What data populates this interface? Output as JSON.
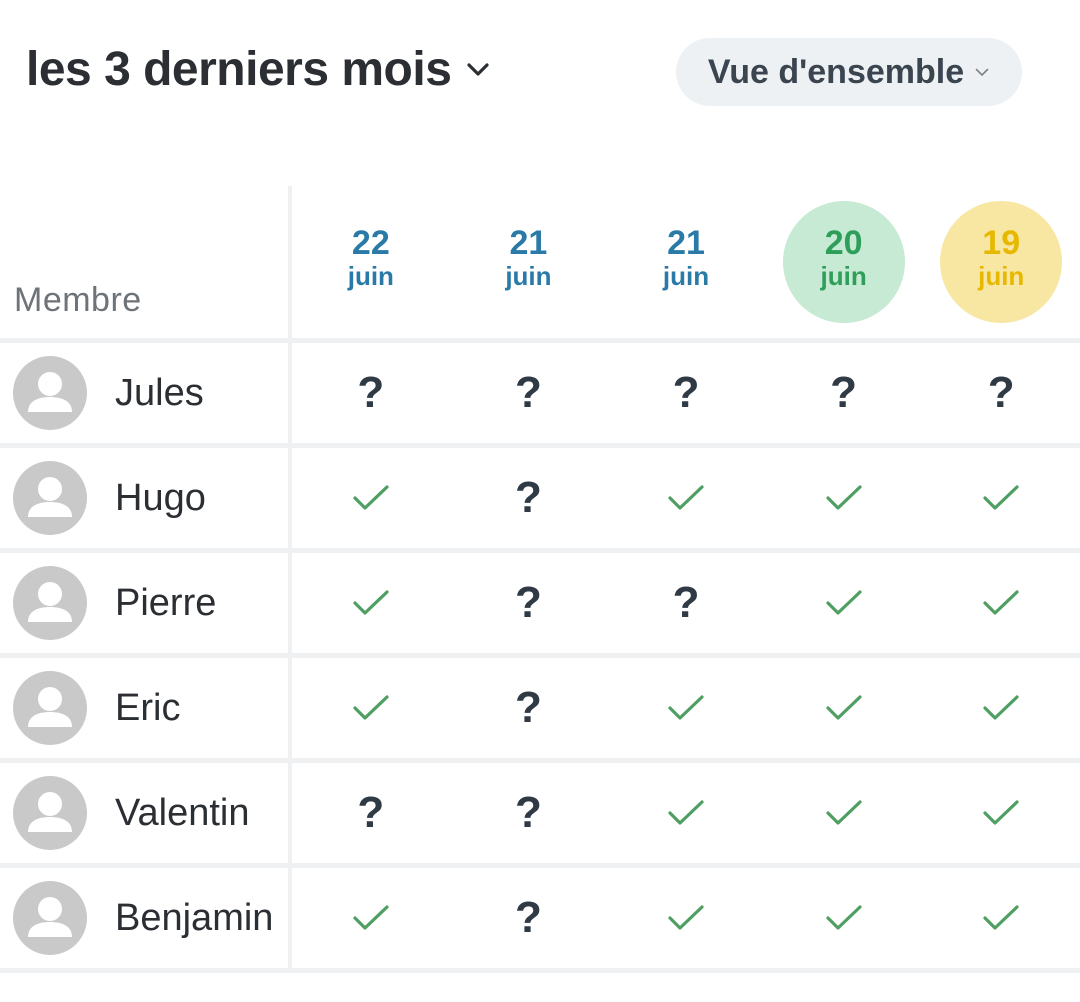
{
  "header": {
    "period_label": "les 3 derniers mois",
    "view_label": "Vue d'ensemble"
  },
  "table": {
    "member_column_label": "Membre",
    "dates": [
      {
        "day": "22",
        "month": "juin",
        "highlight": "none"
      },
      {
        "day": "21",
        "month": "juin",
        "highlight": "none"
      },
      {
        "day": "21",
        "month": "juin",
        "highlight": "none"
      },
      {
        "day": "20",
        "month": "juin",
        "highlight": "green"
      },
      {
        "day": "19",
        "month": "juin",
        "highlight": "yellow"
      }
    ],
    "members": [
      {
        "name": "Jules",
        "statuses": [
          "?",
          "?",
          "?",
          "?",
          "?"
        ]
      },
      {
        "name": "Hugo",
        "statuses": [
          "check",
          "?",
          "check",
          "check",
          "check"
        ]
      },
      {
        "name": "Pierre",
        "statuses": [
          "check",
          "?",
          "?",
          "check",
          "check"
        ]
      },
      {
        "name": "Eric",
        "statuses": [
          "check",
          "?",
          "check",
          "check",
          "check"
        ]
      },
      {
        "name": "Valentin",
        "statuses": [
          "?",
          "?",
          "check",
          "check",
          "check"
        ]
      },
      {
        "name": "Benjamin",
        "statuses": [
          "check",
          "?",
          "check",
          "check",
          "check"
        ]
      }
    ]
  },
  "icons": {
    "period_chevron": "chevron-down-icon",
    "view_chevron": "chevron-down-icon",
    "avatar": "person-icon",
    "present": "check-icon",
    "unknown": "question-mark"
  },
  "colors": {
    "date_default": "#2a7aa8",
    "date_green_bg": "#c6ead3",
    "date_green_text": "#2f9e5a",
    "date_yellow_bg": "#f8e7a3",
    "date_yellow_text": "#e6b800",
    "check": "#4f9e62",
    "question": "#2f3a45",
    "avatar_bg": "#c9c9c9"
  }
}
